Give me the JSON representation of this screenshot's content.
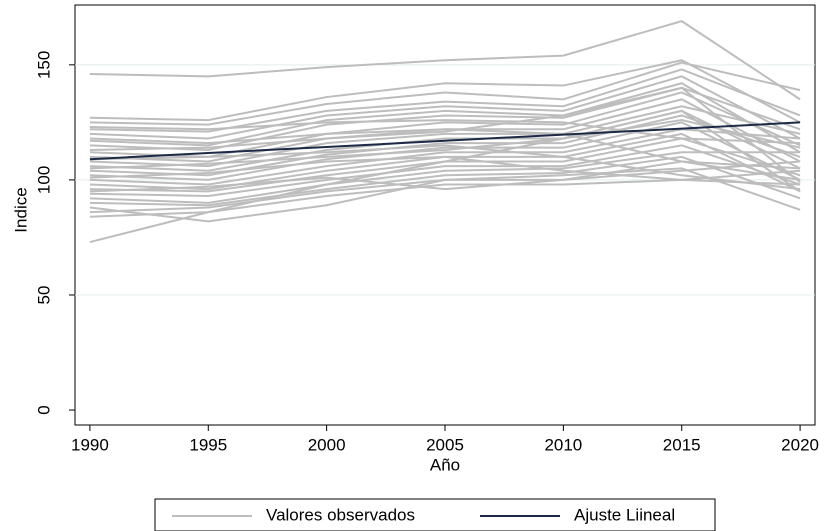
{
  "chart_data": {
    "type": "line",
    "x_label": "Año",
    "y_label": "Indice",
    "x": [
      1990,
      1995,
      2000,
      2005,
      2010,
      2015,
      2020
    ],
    "xlim": [
      1989.37,
      2020.63
    ],
    "ylim": [
      -6.5,
      176
    ],
    "xticks": [
      1990,
      1995,
      2000,
      2005,
      2010,
      2015,
      2020
    ],
    "yticks": [
      0,
      50,
      100,
      150
    ],
    "grid": true,
    "legend": "bottom",
    "observed": {
      "name": "Valores observados",
      "color": "#bdbdbd",
      "lines": [
        [
          146,
          145,
          149,
          152,
          154,
          169,
          135
        ],
        [
          73,
          86,
          98,
          108,
          118,
          130,
          95
        ],
        [
          127,
          126,
          136,
          142,
          141,
          152,
          125
        ],
        [
          125,
          124,
          133,
          138,
          135,
          151,
          139
        ],
        [
          122,
          121,
          130,
          134,
          132,
          148,
          128
        ],
        [
          120,
          118,
          128,
          132,
          130,
          145,
          118
        ],
        [
          117,
          115,
          126,
          130,
          128,
          142,
          112
        ],
        [
          115,
          113,
          124,
          128,
          127,
          140,
          122
        ],
        [
          112,
          110,
          120,
          125,
          124,
          138,
          115
        ],
        [
          110,
          108,
          118,
          122,
          122,
          135,
          108
        ],
        [
          108,
          106,
          116,
          120,
          120,
          132,
          120
        ],
        [
          106,
          104,
          113,
          118,
          118,
          130,
          105
        ],
        [
          104,
          102,
          111,
          116,
          116,
          128,
          110
        ],
        [
          102,
          100,
          109,
          114,
          114,
          125,
          100
        ],
        [
          100,
          98,
          106,
          112,
          112,
          122,
          118
        ],
        [
          98,
          96,
          104,
          110,
          110,
          120,
          95
        ],
        [
          96,
          95,
          102,
          108,
          108,
          118,
          102
        ],
        [
          94,
          93,
          100,
          106,
          106,
          115,
          98
        ],
        [
          92,
          90,
          98,
          104,
          105,
          112,
          112
        ],
        [
          90,
          89,
          96,
          102,
          103,
          110,
          92
        ],
        [
          88,
          82,
          89,
          100,
          102,
          105,
          87
        ],
        [
          86,
          88,
          95,
          100,
          100,
          108,
          100
        ],
        [
          84,
          86,
          93,
          98,
          98,
          100,
          104
        ],
        [
          123,
          122,
          125,
          126,
          125,
          118,
          116
        ],
        [
          118,
          116,
          120,
          122,
          120,
          108,
          105
        ],
        [
          109,
          110,
          112,
          115,
          110,
          102,
          96
        ],
        [
          101,
          103,
          108,
          110,
          104,
          100,
          98
        ],
        [
          95,
          97,
          101,
          96,
          100,
          104,
          108
        ],
        [
          113,
          114,
          118,
          121,
          128,
          140,
          99
        ],
        [
          105,
          107,
          110,
          113,
          118,
          126,
          114
        ]
      ]
    },
    "fit": {
      "name": "Ajuste Liineal",
      "color": "#1c2a48",
      "values": [
        109,
        111.7,
        114.3,
        117,
        119.7,
        122.3,
        125
      ]
    }
  }
}
